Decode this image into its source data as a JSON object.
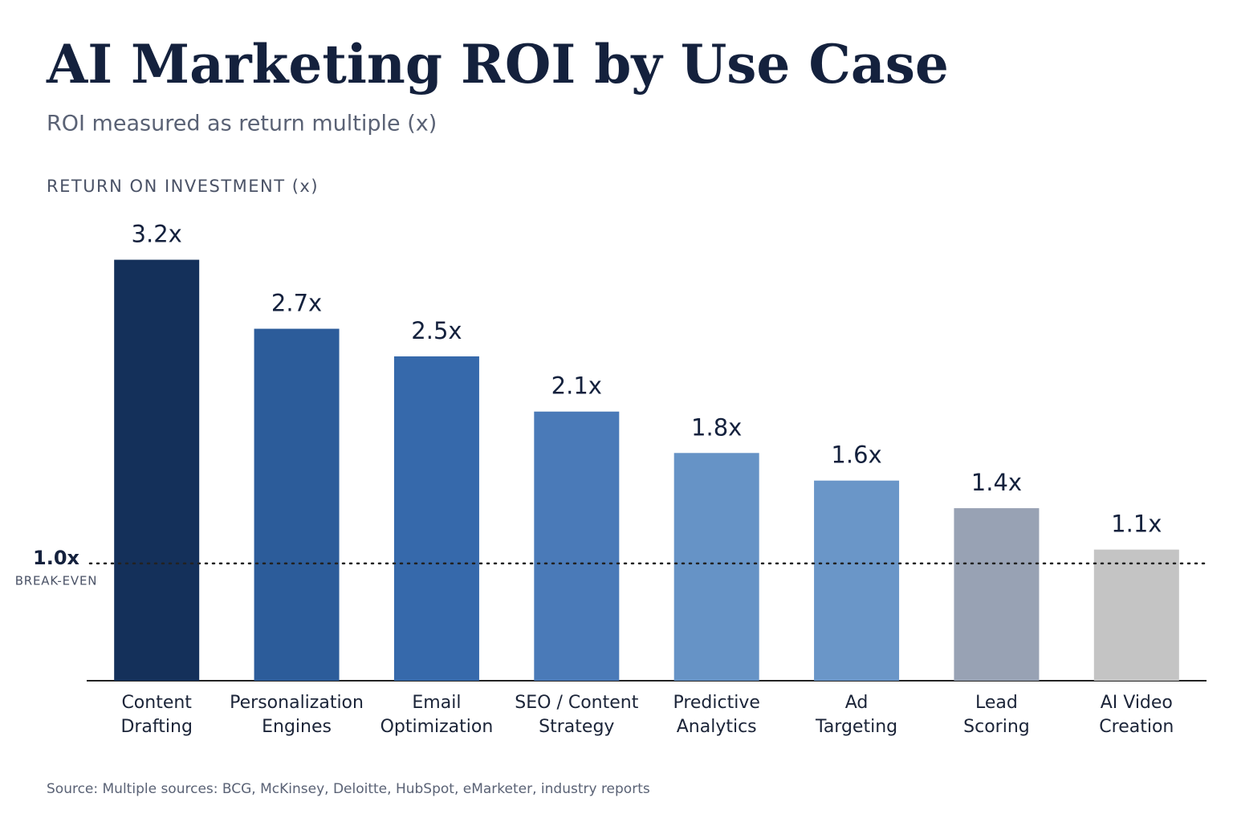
{
  "chart_data": {
    "type": "bar",
    "title": "AI Marketing ROI by Use Case",
    "subtitle": "ROI measured as return multiple (x)",
    "y_axis_label": "RETURN ON INVESTMENT (x)",
    "categories": [
      "Content\nDrafting",
      "Personalization\nEngines",
      "Email\nOptimization",
      "SEO / Content\nStrategy",
      "Predictive\nAnalytics",
      "Ad\nTargeting",
      "Lead\nScoring",
      "AI Video\nCreation"
    ],
    "values": [
      3.2,
      2.7,
      2.5,
      2.1,
      1.8,
      1.6,
      1.4,
      1.1
    ],
    "value_labels": [
      "3.2x",
      "2.7x",
      "2.5x",
      "2.1x",
      "1.8x",
      "1.6x",
      "1.4x",
      "1.1x"
    ],
    "colors": [
      "#14305a",
      "#2c5c9a",
      "#3669ab",
      "#4a7ab8",
      "#6693c6",
      "#6a96c8",
      "#98a2b4",
      "#c4c4c4"
    ],
    "ylim": [
      0.15,
      3.5
    ],
    "reference_line": {
      "value": 1,
      "label": "1.0x",
      "sublabel": "BREAK-EVEN"
    },
    "source": "Source: Multiple sources: BCG, McKinsey, Deloitte, HubSpot, eMarketer, industry reports"
  }
}
